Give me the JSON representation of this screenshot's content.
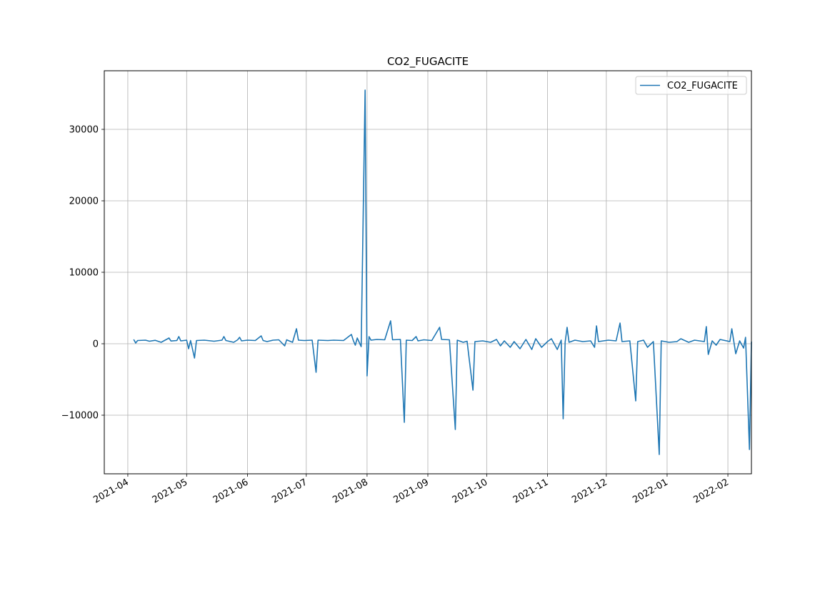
{
  "chart_data": {
    "type": "line",
    "title": "CO2_FUGACITE",
    "xlabel": "",
    "ylabel": "",
    "x_type": "date",
    "xlim": [
      "2021-03-20",
      "2022-02-13"
    ],
    "ylim": [
      -18200,
      38200
    ],
    "grid": true,
    "legend_position": "top-right",
    "x_ticks": [
      "2021-04",
      "2021-05",
      "2021-06",
      "2021-07",
      "2021-08",
      "2021-09",
      "2021-10",
      "2021-11",
      "2021-12",
      "2022-01",
      "2022-02"
    ],
    "y_ticks": [
      -10000,
      0,
      10000,
      20000,
      30000
    ],
    "y_tick_labels": [
      "−10000",
      "0",
      "10000",
      "20000",
      "30000"
    ],
    "series": [
      {
        "name": "CO2_FUGACITE",
        "color": "#1f77b4",
        "points": [
          [
            "2021-04-04",
            600
          ],
          [
            "2021-04-05",
            100
          ],
          [
            "2021-04-06",
            450
          ],
          [
            "2021-04-10",
            500
          ],
          [
            "2021-04-12",
            350
          ],
          [
            "2021-04-15",
            480
          ],
          [
            "2021-04-18",
            200
          ],
          [
            "2021-04-20",
            500
          ],
          [
            "2021-04-22",
            800
          ],
          [
            "2021-04-23",
            380
          ],
          [
            "2021-04-26",
            450
          ],
          [
            "2021-04-27",
            1000
          ],
          [
            "2021-04-28",
            400
          ],
          [
            "2021-05-01",
            500
          ],
          [
            "2021-05-02",
            -700
          ],
          [
            "2021-05-03",
            450
          ],
          [
            "2021-05-05",
            -2000
          ],
          [
            "2021-05-06",
            450
          ],
          [
            "2021-05-10",
            500
          ],
          [
            "2021-05-15",
            350
          ],
          [
            "2021-05-19",
            500
          ],
          [
            "2021-05-20",
            1000
          ],
          [
            "2021-05-21",
            450
          ],
          [
            "2021-05-25",
            200
          ],
          [
            "2021-05-27",
            550
          ],
          [
            "2021-05-28",
            900
          ],
          [
            "2021-05-29",
            400
          ],
          [
            "2021-06-01",
            500
          ],
          [
            "2021-06-05",
            450
          ],
          [
            "2021-06-08",
            1100
          ],
          [
            "2021-06-09",
            450
          ],
          [
            "2021-06-11",
            300
          ],
          [
            "2021-06-14",
            500
          ],
          [
            "2021-06-17",
            550
          ],
          [
            "2021-06-20",
            -300
          ],
          [
            "2021-06-21",
            550
          ],
          [
            "2021-06-24",
            200
          ],
          [
            "2021-06-26",
            2100
          ],
          [
            "2021-06-27",
            500
          ],
          [
            "2021-06-30",
            450
          ],
          [
            "2021-07-04",
            500
          ],
          [
            "2021-07-06",
            -4000
          ],
          [
            "2021-07-07",
            500
          ],
          [
            "2021-07-12",
            450
          ],
          [
            "2021-07-15",
            500
          ],
          [
            "2021-07-20",
            450
          ],
          [
            "2021-07-24",
            1300
          ],
          [
            "2021-07-25",
            450
          ],
          [
            "2021-07-26",
            -200
          ],
          [
            "2021-07-27",
            800
          ],
          [
            "2021-07-29",
            -400
          ],
          [
            "2021-07-31",
            35500
          ],
          [
            "2021-08-01",
            -4500
          ],
          [
            "2021-08-02",
            1000
          ],
          [
            "2021-08-03",
            500
          ],
          [
            "2021-08-06",
            600
          ],
          [
            "2021-08-10",
            550
          ],
          [
            "2021-08-13",
            3200
          ],
          [
            "2021-08-14",
            550
          ],
          [
            "2021-08-18",
            600
          ],
          [
            "2021-08-20",
            -11000
          ],
          [
            "2021-08-21",
            500
          ],
          [
            "2021-08-24",
            450
          ],
          [
            "2021-08-26",
            1000
          ],
          [
            "2021-08-27",
            400
          ],
          [
            "2021-08-30",
            550
          ],
          [
            "2021-09-03",
            450
          ],
          [
            "2021-09-07",
            2300
          ],
          [
            "2021-09-08",
            600
          ],
          [
            "2021-09-12",
            550
          ],
          [
            "2021-09-15",
            -12000
          ],
          [
            "2021-09-16",
            500
          ],
          [
            "2021-09-19",
            200
          ],
          [
            "2021-09-21",
            350
          ],
          [
            "2021-09-24",
            -6500
          ],
          [
            "2021-09-25",
            300
          ],
          [
            "2021-09-29",
            400
          ],
          [
            "2021-10-03",
            200
          ],
          [
            "2021-10-06",
            600
          ],
          [
            "2021-10-08",
            -300
          ],
          [
            "2021-10-10",
            400
          ],
          [
            "2021-10-13",
            -500
          ],
          [
            "2021-10-15",
            300
          ],
          [
            "2021-10-18",
            -700
          ],
          [
            "2021-10-21",
            600
          ],
          [
            "2021-10-24",
            -800
          ],
          [
            "2021-10-26",
            700
          ],
          [
            "2021-10-29",
            -500
          ],
          [
            "2021-11-01",
            300
          ],
          [
            "2021-11-03",
            700
          ],
          [
            "2021-11-06",
            -800
          ],
          [
            "2021-11-08",
            500
          ],
          [
            "2021-11-09",
            -10500
          ],
          [
            "2021-11-10",
            200
          ],
          [
            "2021-11-11",
            2300
          ],
          [
            "2021-11-12",
            200
          ],
          [
            "2021-11-15",
            500
          ],
          [
            "2021-11-19",
            300
          ],
          [
            "2021-11-23",
            400
          ],
          [
            "2021-11-25",
            -500
          ],
          [
            "2021-11-26",
            2500
          ],
          [
            "2021-11-27",
            300
          ],
          [
            "2021-12-02",
            500
          ],
          [
            "2021-12-06",
            400
          ],
          [
            "2021-12-08",
            2900
          ],
          [
            "2021-12-09",
            300
          ],
          [
            "2021-12-13",
            400
          ],
          [
            "2021-12-16",
            -8000
          ],
          [
            "2021-12-17",
            300
          ],
          [
            "2021-12-20",
            500
          ],
          [
            "2021-12-22",
            -500
          ],
          [
            "2021-12-25",
            300
          ],
          [
            "2021-12-28",
            -15500
          ],
          [
            "2021-12-29",
            400
          ],
          [
            "2022-01-02",
            200
          ],
          [
            "2022-01-06",
            300
          ],
          [
            "2022-01-08",
            700
          ],
          [
            "2022-01-12",
            200
          ],
          [
            "2022-01-15",
            500
          ],
          [
            "2022-01-20",
            300
          ],
          [
            "2022-01-21",
            2400
          ],
          [
            "2022-01-22",
            -1500
          ],
          [
            "2022-01-24",
            400
          ],
          [
            "2022-01-26",
            -200
          ],
          [
            "2022-01-28",
            600
          ],
          [
            "2022-02-02",
            300
          ],
          [
            "2022-02-03",
            2100
          ],
          [
            "2022-02-05",
            -1400
          ],
          [
            "2022-02-07",
            400
          ],
          [
            "2022-02-09",
            -600
          ],
          [
            "2022-02-10",
            900
          ],
          [
            "2022-02-12",
            -14800
          ],
          [
            "2022-02-13",
            300
          ]
        ]
      }
    ]
  }
}
